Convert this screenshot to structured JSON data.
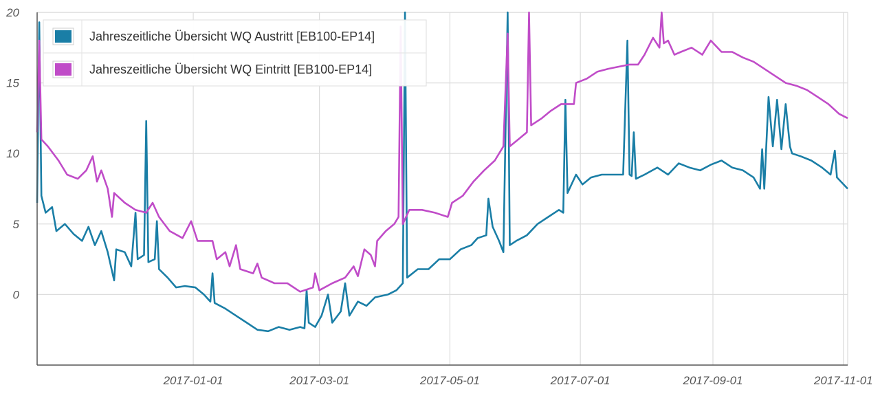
{
  "chart_data": {
    "type": "line",
    "x_axis": {
      "type": "date",
      "min": "2016-10-20",
      "max": "2017-11-03",
      "ticks": [
        "2017-01-01",
        "2017-03-01",
        "2017-05-01",
        "2017-07-01",
        "2017-09-01",
        "2017-11-01"
      ]
    },
    "y_axis": {
      "min": -5,
      "max": 20,
      "ticks": [
        0,
        5,
        10,
        15,
        20
      ]
    },
    "grid": true,
    "legend": "top-left",
    "series": [
      {
        "name": "Jahreszeitliche Übersicht WQ Austritt [EB100-EP14]",
        "color": "#1a7ea6",
        "points": [
          [
            "2016-10-20",
            6.5
          ],
          [
            "2016-10-21",
            19.3
          ],
          [
            "2016-10-22",
            7.0
          ],
          [
            "2016-10-24",
            5.8
          ],
          [
            "2016-10-27",
            6.2
          ],
          [
            "2016-10-29",
            4.5
          ],
          [
            "2016-11-02",
            5.0
          ],
          [
            "2016-11-06",
            4.3
          ],
          [
            "2016-11-10",
            3.8
          ],
          [
            "2016-11-13",
            4.8
          ],
          [
            "2016-11-16",
            3.5
          ],
          [
            "2016-11-19",
            4.5
          ],
          [
            "2016-11-22",
            3.0
          ],
          [
            "2016-11-25",
            1.0
          ],
          [
            "2016-11-26",
            3.2
          ],
          [
            "2016-11-30",
            3.0
          ],
          [
            "2016-12-03",
            2.0
          ],
          [
            "2016-12-05",
            5.8
          ],
          [
            "2016-12-06",
            2.5
          ],
          [
            "2016-12-09",
            2.8
          ],
          [
            "2016-12-10",
            12.3
          ],
          [
            "2016-12-11",
            2.3
          ],
          [
            "2016-12-14",
            2.5
          ],
          [
            "2016-12-15",
            5.2
          ],
          [
            "2016-12-16",
            1.8
          ],
          [
            "2016-12-20",
            1.2
          ],
          [
            "2016-12-24",
            0.5
          ],
          [
            "2016-12-28",
            0.6
          ],
          [
            "2017-01-02",
            0.5
          ],
          [
            "2017-01-06",
            0.0
          ],
          [
            "2017-01-09",
            -0.5
          ],
          [
            "2017-01-10",
            1.5
          ],
          [
            "2017-01-11",
            -0.6
          ],
          [
            "2017-01-16",
            -1.0
          ],
          [
            "2017-01-21",
            -1.5
          ],
          [
            "2017-01-26",
            -2.0
          ],
          [
            "2017-01-31",
            -2.5
          ],
          [
            "2017-02-05",
            -2.6
          ],
          [
            "2017-02-10",
            -2.3
          ],
          [
            "2017-02-15",
            -2.5
          ],
          [
            "2017-02-20",
            -2.3
          ],
          [
            "2017-02-22",
            -2.4
          ],
          [
            "2017-02-23",
            0.3
          ],
          [
            "2017-02-24",
            -2.0
          ],
          [
            "2017-02-27",
            -2.3
          ],
          [
            "2017-03-02",
            -1.5
          ],
          [
            "2017-03-05",
            0.0
          ],
          [
            "2017-03-07",
            -2.0
          ],
          [
            "2017-03-11",
            -1.2
          ],
          [
            "2017-03-13",
            0.8
          ],
          [
            "2017-03-15",
            -1.5
          ],
          [
            "2017-03-19",
            -0.5
          ],
          [
            "2017-03-23",
            -0.8
          ],
          [
            "2017-03-27",
            -0.2
          ],
          [
            "2017-04-02",
            0.0
          ],
          [
            "2017-04-06",
            0.3
          ],
          [
            "2017-04-09",
            0.8
          ],
          [
            "2017-04-10",
            20.0
          ],
          [
            "2017-04-11",
            1.2
          ],
          [
            "2017-04-16",
            1.8
          ],
          [
            "2017-04-21",
            1.8
          ],
          [
            "2017-04-26",
            2.5
          ],
          [
            "2017-05-01",
            2.5
          ],
          [
            "2017-05-06",
            3.2
          ],
          [
            "2017-05-11",
            3.5
          ],
          [
            "2017-05-14",
            4.0
          ],
          [
            "2017-05-18",
            4.2
          ],
          [
            "2017-05-19",
            6.8
          ],
          [
            "2017-05-21",
            4.8
          ],
          [
            "2017-05-24",
            3.8
          ],
          [
            "2017-05-26",
            3.0
          ],
          [
            "2017-05-28",
            20.0
          ],
          [
            "2017-05-29",
            3.5
          ],
          [
            "2017-06-01",
            3.8
          ],
          [
            "2017-06-06",
            4.2
          ],
          [
            "2017-06-11",
            5.0
          ],
          [
            "2017-06-16",
            5.5
          ],
          [
            "2017-06-21",
            6.0
          ],
          [
            "2017-06-23",
            5.8
          ],
          [
            "2017-06-24",
            13.8
          ],
          [
            "2017-06-25",
            7.2
          ],
          [
            "2017-06-29",
            8.5
          ],
          [
            "2017-07-02",
            7.8
          ],
          [
            "2017-07-06",
            8.3
          ],
          [
            "2017-07-11",
            8.5
          ],
          [
            "2017-07-16",
            8.5
          ],
          [
            "2017-07-21",
            8.5
          ],
          [
            "2017-07-23",
            18.0
          ],
          [
            "2017-07-24",
            8.5
          ],
          [
            "2017-07-25",
            8.4
          ],
          [
            "2017-07-26",
            11.5
          ],
          [
            "2017-07-27",
            8.2
          ],
          [
            "2017-07-31",
            8.5
          ],
          [
            "2017-08-06",
            9.0
          ],
          [
            "2017-08-11",
            8.5
          ],
          [
            "2017-08-16",
            9.3
          ],
          [
            "2017-08-21",
            9.0
          ],
          [
            "2017-08-26",
            8.8
          ],
          [
            "2017-08-31",
            9.2
          ],
          [
            "2017-09-05",
            9.5
          ],
          [
            "2017-09-10",
            9.0
          ],
          [
            "2017-09-15",
            8.8
          ],
          [
            "2017-09-20",
            8.3
          ],
          [
            "2017-09-23",
            7.5
          ],
          [
            "2017-09-24",
            10.3
          ],
          [
            "2017-09-25",
            7.5
          ],
          [
            "2017-09-27",
            14.0
          ],
          [
            "2017-09-29",
            10.5
          ],
          [
            "2017-10-01",
            13.8
          ],
          [
            "2017-10-03",
            10.3
          ],
          [
            "2017-10-05",
            13.5
          ],
          [
            "2017-10-07",
            10.5
          ],
          [
            "2017-10-08",
            10.0
          ],
          [
            "2017-10-12",
            9.8
          ],
          [
            "2017-10-17",
            9.5
          ],
          [
            "2017-10-22",
            9.0
          ],
          [
            "2017-10-26",
            8.5
          ],
          [
            "2017-10-28",
            10.2
          ],
          [
            "2017-10-29",
            8.3
          ],
          [
            "2017-11-03",
            7.5
          ]
        ]
      },
      {
        "name": "Jahreszeitliche Übersicht WQ Eintritt [EB100-EP14]",
        "color": "#c04cc8",
        "points": [
          [
            "2016-10-20",
            11.5
          ],
          [
            "2016-10-21",
            18.0
          ],
          [
            "2016-10-22",
            11.0
          ],
          [
            "2016-10-25",
            10.5
          ],
          [
            "2016-10-30",
            9.5
          ],
          [
            "2016-11-03",
            8.5
          ],
          [
            "2016-11-08",
            8.2
          ],
          [
            "2016-11-12",
            8.8
          ],
          [
            "2016-11-15",
            9.8
          ],
          [
            "2016-11-17",
            8.0
          ],
          [
            "2016-11-19",
            8.8
          ],
          [
            "2016-11-22",
            7.5
          ],
          [
            "2016-11-24",
            5.5
          ],
          [
            "2016-11-25",
            7.2
          ],
          [
            "2016-11-30",
            6.5
          ],
          [
            "2016-12-05",
            6.0
          ],
          [
            "2016-12-10",
            5.8
          ],
          [
            "2016-12-13",
            6.5
          ],
          [
            "2016-12-16",
            5.5
          ],
          [
            "2016-12-21",
            4.5
          ],
          [
            "2016-12-27",
            4.0
          ],
          [
            "2016-12-31",
            5.2
          ],
          [
            "2017-01-03",
            3.8
          ],
          [
            "2017-01-10",
            3.8
          ],
          [
            "2017-01-12",
            2.5
          ],
          [
            "2017-01-16",
            3.0
          ],
          [
            "2017-01-18",
            2.0
          ],
          [
            "2017-01-21",
            3.5
          ],
          [
            "2017-01-23",
            1.8
          ],
          [
            "2017-01-29",
            1.5
          ],
          [
            "2017-01-31",
            2.2
          ],
          [
            "2017-02-02",
            1.2
          ],
          [
            "2017-02-08",
            0.8
          ],
          [
            "2017-02-14",
            0.8
          ],
          [
            "2017-02-20",
            0.2
          ],
          [
            "2017-02-26",
            0.5
          ],
          [
            "2017-02-27",
            1.5
          ],
          [
            "2017-03-01",
            0.3
          ],
          [
            "2017-03-07",
            0.8
          ],
          [
            "2017-03-13",
            1.2
          ],
          [
            "2017-03-17",
            2.0
          ],
          [
            "2017-03-19",
            1.3
          ],
          [
            "2017-03-22",
            3.2
          ],
          [
            "2017-03-25",
            2.8
          ],
          [
            "2017-03-27",
            2.0
          ],
          [
            "2017-03-28",
            3.8
          ],
          [
            "2017-04-01",
            4.5
          ],
          [
            "2017-04-05",
            5.0
          ],
          [
            "2017-04-07",
            5.5
          ],
          [
            "2017-04-08",
            19.0
          ],
          [
            "2017-04-09",
            5.0
          ],
          [
            "2017-04-12",
            6.0
          ],
          [
            "2017-04-18",
            6.0
          ],
          [
            "2017-04-24",
            5.8
          ],
          [
            "2017-04-30",
            5.5
          ],
          [
            "2017-05-02",
            6.5
          ],
          [
            "2017-05-07",
            7.0
          ],
          [
            "2017-05-12",
            8.0
          ],
          [
            "2017-05-17",
            8.8
          ],
          [
            "2017-05-22",
            9.5
          ],
          [
            "2017-05-26",
            10.5
          ],
          [
            "2017-05-28",
            18.5
          ],
          [
            "2017-05-29",
            10.5
          ],
          [
            "2017-06-02",
            11.0
          ],
          [
            "2017-06-06",
            11.5
          ],
          [
            "2017-06-07",
            20.0
          ],
          [
            "2017-06-08",
            12.0
          ],
          [
            "2017-06-13",
            12.5
          ],
          [
            "2017-06-17",
            13.0
          ],
          [
            "2017-06-22",
            13.5
          ],
          [
            "2017-06-28",
            13.5
          ],
          [
            "2017-06-29",
            15.0
          ],
          [
            "2017-07-04",
            15.3
          ],
          [
            "2017-07-09",
            15.8
          ],
          [
            "2017-07-14",
            16.0
          ],
          [
            "2017-07-24",
            16.3
          ],
          [
            "2017-07-28",
            16.3
          ],
          [
            "2017-07-31",
            17.0
          ],
          [
            "2017-08-04",
            18.2
          ],
          [
            "2017-08-07",
            17.5
          ],
          [
            "2017-08-08",
            20.0
          ],
          [
            "2017-08-09",
            17.8
          ],
          [
            "2017-08-11",
            18.0
          ],
          [
            "2017-08-14",
            17.0
          ],
          [
            "2017-08-17",
            17.2
          ],
          [
            "2017-08-22",
            17.5
          ],
          [
            "2017-08-27",
            17.0
          ],
          [
            "2017-08-31",
            18.0
          ],
          [
            "2017-09-05",
            17.2
          ],
          [
            "2017-09-10",
            17.2
          ],
          [
            "2017-09-15",
            16.8
          ],
          [
            "2017-09-20",
            16.5
          ],
          [
            "2017-09-25",
            16.0
          ],
          [
            "2017-09-30",
            15.5
          ],
          [
            "2017-10-05",
            15.0
          ],
          [
            "2017-10-10",
            14.8
          ],
          [
            "2017-10-15",
            14.5
          ],
          [
            "2017-10-20",
            14.0
          ],
          [
            "2017-10-25",
            13.5
          ],
          [
            "2017-10-30",
            12.8
          ],
          [
            "2017-11-03",
            12.5
          ]
        ]
      }
    ]
  }
}
